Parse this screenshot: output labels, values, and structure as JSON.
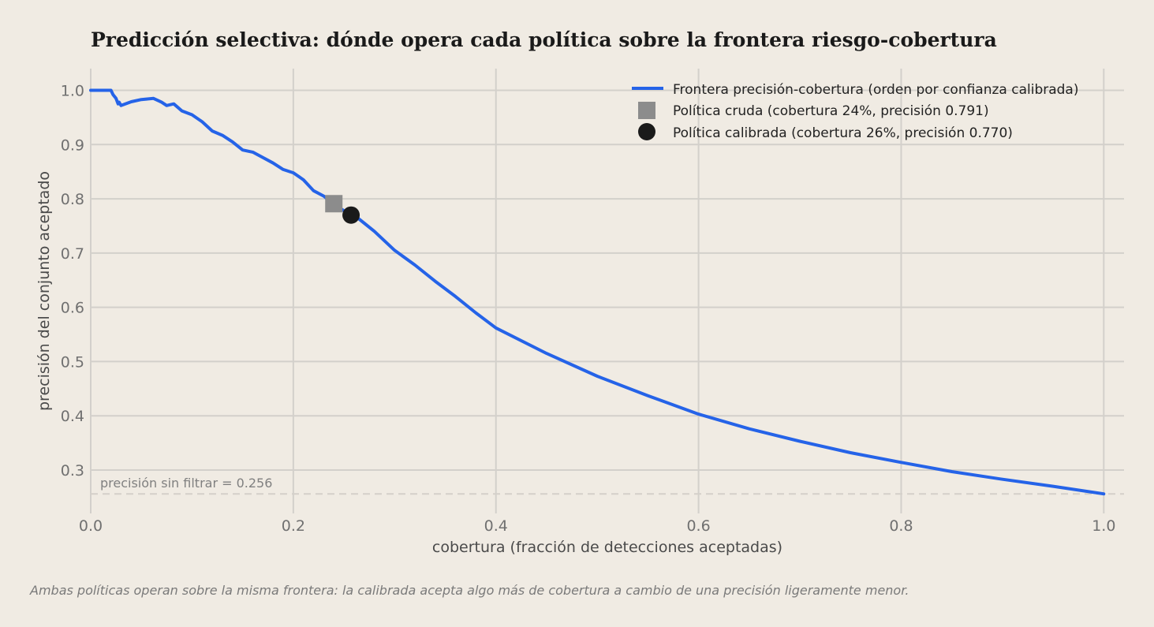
{
  "chart_data": {
    "type": "line",
    "title": "Predicción selectiva: dónde opera cada política sobre la frontera riesgo-cobertura",
    "xlabel": "cobertura (fracción de detecciones aceptadas)",
    "ylabel": "precisión del conjunto aceptado",
    "xlim": [
      0.0,
      1.02
    ],
    "ylim": [
      0.22,
      1.04
    ],
    "x_ticks": [
      "0.0",
      "0.2",
      "0.4",
      "0.6",
      "0.8",
      "1.0"
    ],
    "y_ticks": [
      "0.3",
      "0.4",
      "0.5",
      "0.6",
      "0.7",
      "0.8",
      "0.9",
      "1.0"
    ],
    "grid": true,
    "legend_position": "top-right",
    "series": [
      {
        "name": "Frontera precisión-cobertura (orden por confianza calibrada)",
        "color": "#2563e8",
        "x": [
          0.0,
          0.02,
          0.022,
          0.025,
          0.027,
          0.028,
          0.03,
          0.04,
          0.05,
          0.062,
          0.07,
          0.075,
          0.082,
          0.09,
          0.1,
          0.11,
          0.12,
          0.13,
          0.14,
          0.15,
          0.16,
          0.17,
          0.18,
          0.19,
          0.2,
          0.21,
          0.22,
          0.23,
          0.24,
          0.25,
          0.26,
          0.27,
          0.28,
          0.3,
          0.32,
          0.34,
          0.36,
          0.38,
          0.4,
          0.45,
          0.5,
          0.55,
          0.6,
          0.65,
          0.7,
          0.75,
          0.8,
          0.85,
          0.9,
          0.95,
          1.0
        ],
        "y": [
          1.0,
          1.0,
          0.992,
          0.985,
          0.975,
          0.978,
          0.972,
          0.979,
          0.983,
          0.985,
          0.978,
          0.972,
          0.975,
          0.962,
          0.955,
          0.942,
          0.925,
          0.917,
          0.905,
          0.89,
          0.886,
          0.876,
          0.866,
          0.854,
          0.848,
          0.835,
          0.815,
          0.805,
          0.79,
          0.778,
          0.77,
          0.755,
          0.74,
          0.705,
          0.678,
          0.648,
          0.62,
          0.59,
          0.562,
          0.515,
          0.473,
          0.437,
          0.403,
          0.376,
          0.353,
          0.332,
          0.314,
          0.297,
          0.283,
          0.27,
          0.256
        ]
      }
    ],
    "points": [
      {
        "name": "Política cruda  (cobertura 24%, precisión 0.791)",
        "x": 0.24,
        "y": 0.791,
        "marker": "square",
        "color": "#8c8c8c"
      },
      {
        "name": "Política calibrada  (cobertura 26%, precisión 0.770)",
        "x": 0.257,
        "y": 0.77,
        "marker": "circle",
        "color": "#1a1a1a"
      }
    ],
    "baseline": {
      "label": "precisión sin filtrar = 0.256",
      "y": 0.256
    },
    "caption": "Ambas políticas operan sobre la misma frontera: la calibrada acepta algo más de cobertura a cambio de una precisión ligeramente menor."
  }
}
